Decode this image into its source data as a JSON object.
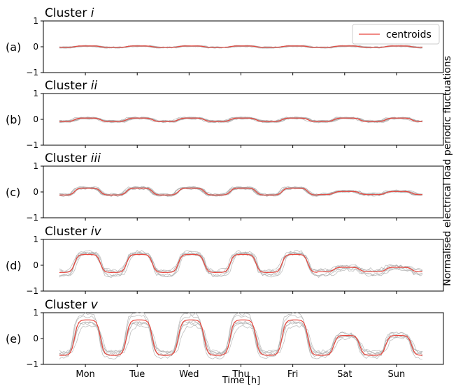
{
  "figure": {
    "xlabel": "Time [h]",
    "ylabel": "Normalised electrical load periodic fluctuations",
    "days": [
      "Mon",
      "Tue",
      "Wed",
      "Thu",
      "Fri",
      "Sat",
      "Sun"
    ],
    "legend": {
      "label": "centroids",
      "placement": "top-right"
    },
    "colors": {
      "centroid": "#e8453c",
      "members": "#a9a9a9",
      "axis": "#000000"
    }
  },
  "chart_data": [
    {
      "type": "line",
      "letter": "(a)",
      "title_prefix": "Cluster ",
      "title_italic": "i",
      "ylim": [
        -1,
        1
      ],
      "yticks": [
        "1",
        "0",
        "−1"
      ],
      "xlim": [
        0,
        168
      ],
      "profile": {
        "weekday_min": -0.02,
        "weekday_max": 0.03,
        "weekend_min": -0.02,
        "weekend_max": 0.03
      },
      "members_spread": 0.07,
      "member_count": 7,
      "show_legend": true
    },
    {
      "type": "line",
      "letter": "(b)",
      "title_prefix": "Cluster ",
      "title_italic": "ii",
      "ylim": [
        -1,
        1
      ],
      "yticks": [
        "1",
        "0",
        "−1"
      ],
      "xlim": [
        0,
        168
      ],
      "profile": {
        "weekday_min": -0.08,
        "weekday_max": 0.05,
        "weekend_min": -0.08,
        "weekend_max": 0.05
      },
      "members_spread": 0.1,
      "member_count": 9,
      "show_legend": false
    },
    {
      "type": "line",
      "letter": "(c)",
      "title_prefix": "Cluster ",
      "title_italic": "iii",
      "ylim": [
        -1,
        1
      ],
      "yticks": [
        "1",
        "0",
        "−1"
      ],
      "xlim": [
        0,
        168
      ],
      "profile": {
        "weekday_min": -0.12,
        "weekday_max": 0.15,
        "weekend_min": -0.1,
        "weekend_max": 0.02
      },
      "members_spread": 0.12,
      "member_count": 9,
      "show_legend": false
    },
    {
      "type": "line",
      "letter": "(d)",
      "title_prefix": "Cluster ",
      "title_italic": "iv",
      "ylim": [
        -1,
        1
      ],
      "yticks": [
        "1",
        "0",
        "−1"
      ],
      "xlim": [
        0,
        168
      ],
      "profile": {
        "weekday_min": -0.28,
        "weekday_max": 0.42,
        "weekend_min": -0.25,
        "weekend_max": -0.08
      },
      "members_spread": 0.25,
      "member_count": 6,
      "show_legend": false
    },
    {
      "type": "line",
      "letter": "(e)",
      "title_prefix": "Cluster ",
      "title_italic": "v",
      "ylim": [
        -1,
        1
      ],
      "yticks": [
        "1",
        "0",
        "−1"
      ],
      "xlim": [
        0,
        168
      ],
      "profile": {
        "weekday_min": -0.65,
        "weekday_max": 0.72,
        "weekend_min": -0.65,
        "weekend_max": 0.12
      },
      "members_spread": 0.25,
      "member_count": 6,
      "show_legend": false
    }
  ]
}
